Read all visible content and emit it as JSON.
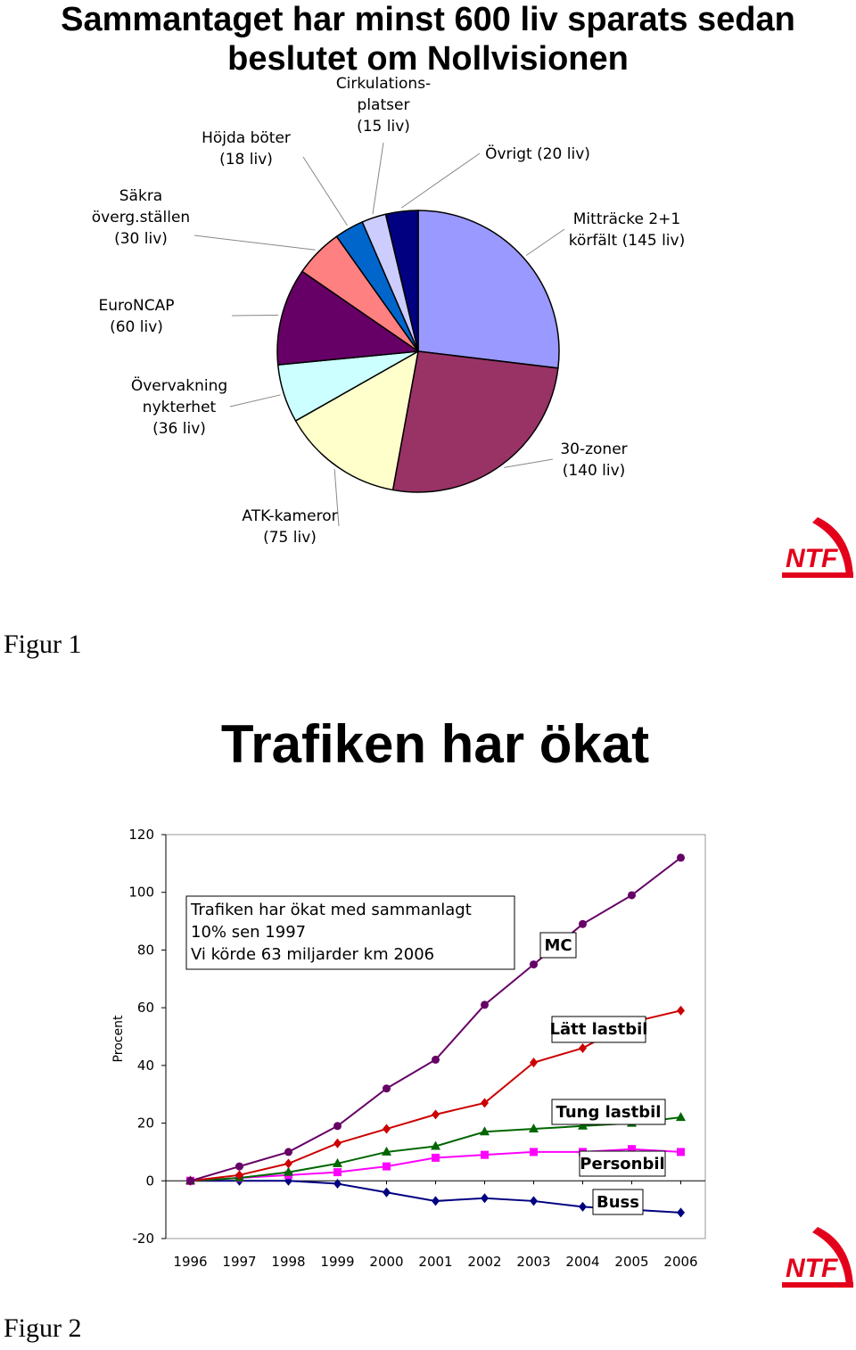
{
  "figure1": {
    "title_line1": "Sammantaget har minst 600 liv sparats sedan",
    "title_line2": "beslutet om Nollvisionen",
    "caption": "Figur 1",
    "logo": "NTF",
    "colors": {
      "navy": "#000080",
      "violet": "#9999ff",
      "plum": "#993366",
      "cream": "#ffffcc",
      "ice": "#ccffff",
      "wine": "#660066",
      "salmon": "#ff8080",
      "blue": "#0066cc",
      "lavender": "#ccccff"
    }
  },
  "figure2": {
    "title": "Trafiken har ökat",
    "caption": "Figur 2",
    "logo": "NTF",
    "annotation_lines": [
      "Trafiken har ökat med sammanlagt",
      "10% sen 1997",
      "Vi körde 63 miljarder km 2006"
    ],
    "ylabel": "Procent"
  },
  "chart_data": [
    {
      "type": "pie",
      "title": "Sammantaget har minst 600 liv sparats sedan beslutet om Nollvisionen",
      "slices": [
        {
          "lines": [
            "Mitträcke 2+1",
            "körfält (145 liv)"
          ],
          "value": 145,
          "color": "#9999ff"
        },
        {
          "lines": [
            "30-zoner",
            "(140 liv)"
          ],
          "value": 140,
          "color": "#993366"
        },
        {
          "lines": [
            "ATK-kameror",
            "(75 liv)"
          ],
          "value": 75,
          "color": "#ffffcc"
        },
        {
          "lines": [
            "Övervakning",
            "nykterhet",
            "(36 liv)"
          ],
          "value": 36,
          "color": "#ccffff"
        },
        {
          "lines": [
            "EuroNCAP",
            "(60 liv)"
          ],
          "value": 60,
          "color": "#660066"
        },
        {
          "lines": [
            "Säkra",
            "överg.ställen",
            "(30 liv)"
          ],
          "value": 30,
          "color": "#ff8080"
        },
        {
          "lines": [
            "Höjda böter",
            "(18 liv)"
          ],
          "value": 18,
          "color": "#0066cc"
        },
        {
          "lines": [
            "Cirkulations-",
            "platser",
            "(15 liv)"
          ],
          "value": 15,
          "color": "#ccccff"
        },
        {
          "lines": [
            "Övrigt (20 liv)"
          ],
          "value": 20,
          "color": "#000080"
        }
      ]
    },
    {
      "type": "line",
      "title": "Trafiken har ökat",
      "ylabel": "Procent",
      "ylim": [
        -20,
        120
      ],
      "yticks": [
        "120",
        "100",
        "80",
        "60",
        "40",
        "20",
        "0",
        "-20"
      ],
      "x": [
        "1996",
        "1997",
        "1998",
        "1999",
        "2000",
        "2001",
        "2002",
        "2003",
        "2004",
        "2005",
        "2006"
      ],
      "series": [
        {
          "name": "MC",
          "color": "#660066",
          "marker": "circle",
          "values": [
            0,
            5,
            10,
            19,
            32,
            42,
            61,
            75,
            89,
            99,
            112
          ]
        },
        {
          "name": "Lätt lastbil",
          "color": "#cc0000",
          "marker": "diamond",
          "values": [
            0,
            2,
            6,
            13,
            18,
            23,
            27,
            41,
            46,
            55,
            59
          ]
        },
        {
          "name": "Tung lastbil",
          "color": "#006600",
          "marker": "triangle",
          "values": [
            0,
            1,
            3,
            6,
            10,
            12,
            17,
            18,
            19,
            20,
            22
          ]
        },
        {
          "name": "Personbil",
          "color": "#ff00ff",
          "marker": "square",
          "values": [
            0,
            1,
            2,
            3,
            5,
            8,
            9,
            10,
            10,
            11,
            10
          ]
        },
        {
          "name": "Buss",
          "color": "#000080",
          "marker": "diamond",
          "values": [
            0,
            0,
            0,
            -1,
            -4,
            -7,
            -6,
            -7,
            -9,
            -10,
            -11
          ]
        }
      ]
    }
  ]
}
